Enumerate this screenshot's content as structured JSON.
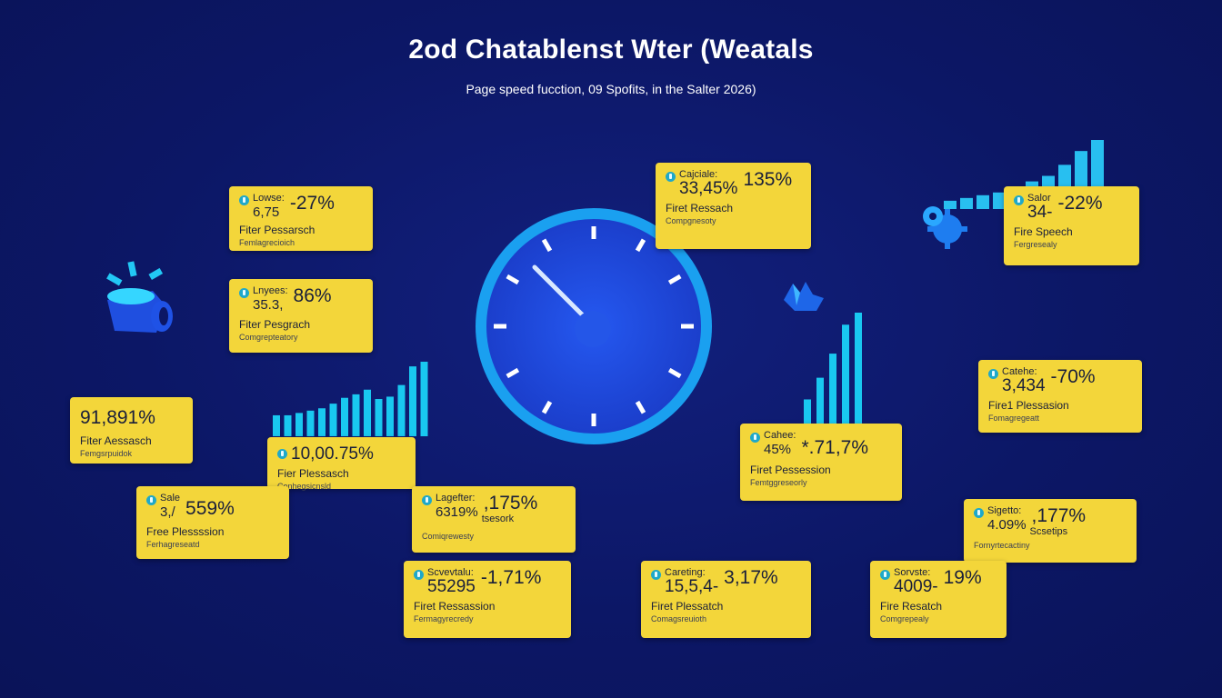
{
  "header": {
    "title": "2od Chatablenst Wter (Weatals",
    "subtitle": "Page speed fucction, 09 Spofits, in the Salter 2026)"
  },
  "colors": {
    "background": "#0c1766",
    "card": "#f3d63a",
    "accent": "#1fa8c9",
    "bars": "#19c8f0",
    "gauge": "#1e4fe0"
  },
  "cards": [
    {
      "label": "Lowse:",
      "value": "6,75",
      "percent": "-27%",
      "line1": "Fiter Pessarsch",
      "line2": "Femlagrecioich"
    },
    {
      "label": "Lnyees:",
      "value": "35.3,",
      "percent": "86%",
      "line1": "Fiter Pesgrach",
      "line2": "Comgrepteatory"
    },
    {
      "big": "91,891%",
      "line1": "Fiter Aessasch",
      "line2": "Femgsrpuidok"
    },
    {
      "big": "10,00.75%",
      "line1": "Fier Plessasch",
      "line2": "Conhegsicnsld"
    },
    {
      "label": "Sale",
      "value": "3,/",
      "percent": "559%",
      "line1": "Free Plessssion",
      "line2": "Ferhagreseatd"
    },
    {
      "label": "Lagefter:",
      "value": "6319%",
      "percent": ",175%",
      "extra": "tsesork",
      "line2": "Comiqrewesty"
    },
    {
      "label": "Scvevtalu:",
      "value": "55295",
      "percent": "-1,71%",
      "line1": "Firet Ressassion",
      "line2": "Fermagyrecredy"
    },
    {
      "label": "Cajciale:",
      "value": "33,45%",
      "percent": "135%",
      "line1": "Firet Ressach",
      "line2": "Compgnesoty"
    },
    {
      "label": "Cahee:",
      "value": "45%",
      "percent": "*.71,7%",
      "line1": "Firet Pessession",
      "line2": "Femtggreseorly"
    },
    {
      "label": "Careting:",
      "value": "15,5,4-",
      "percent": "3,17%",
      "line1": "Firet Plessatch",
      "line2": "Comagsreuioth"
    },
    {
      "label": "Salor",
      "value": "34-",
      "percent": "-22%",
      "line1": "Fire Speech",
      "line2": "Fergresealy"
    },
    {
      "label": "Catehe:",
      "value": "3,434",
      "percent": "-70%",
      "line1": "Fire1 Plessasion",
      "line2": "Fomagregeatt"
    },
    {
      "label": "Sigetto:",
      "value": "4.09%",
      "percent": ",177%",
      "extra": "Scsetips",
      "line2": "Fornyrtecactiny"
    },
    {
      "label": "Sorvste:",
      "value": "4009-",
      "percent": "19%",
      "line1": "Fire Resatch",
      "line2": "Comgrepealy"
    }
  ],
  "icons": {
    "left": "megaphone-icon",
    "top_right": "gear-icon",
    "center_right": "hands-icon"
  },
  "bar_groups": {
    "left_chart": [
      18,
      18,
      20,
      22,
      24,
      28,
      33,
      36,
      40,
      32,
      34,
      44,
      60,
      64
    ],
    "right_chart": [
      20,
      38,
      58,
      82,
      92
    ],
    "top_right_chart": [
      6,
      8,
      10,
      12,
      16,
      20,
      24,
      32,
      42,
      50
    ]
  }
}
